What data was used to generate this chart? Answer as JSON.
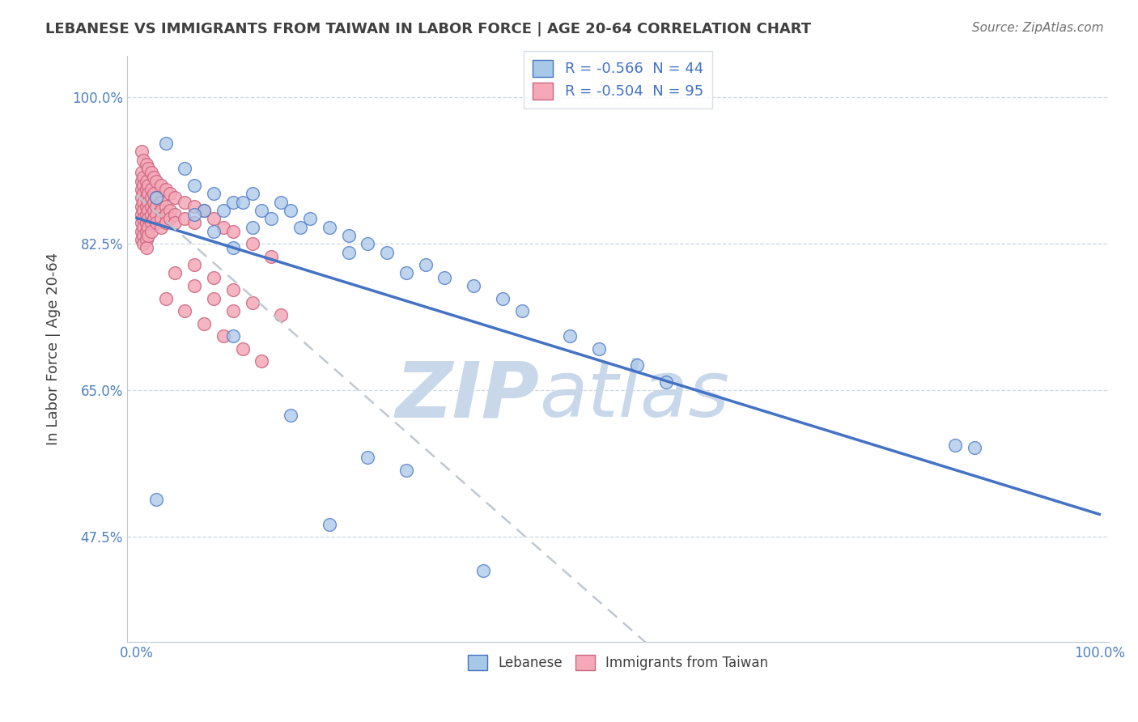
{
  "title": "LEBANESE VS IMMIGRANTS FROM TAIWAN IN LABOR FORCE | AGE 20-64 CORRELATION CHART",
  "source": "Source: ZipAtlas.com",
  "ylabel": "In Labor Force | Age 20-64",
  "xlim": [
    -0.01,
    1.01
  ],
  "ylim": [
    0.35,
    1.05
  ],
  "yticks": [
    0.475,
    0.65,
    0.825,
    1.0
  ],
  "ytick_labels": [
    "47.5%",
    "65.0%",
    "82.5%",
    "100.0%"
  ],
  "xticks": [
    0.0,
    1.0
  ],
  "xtick_labels": [
    "0.0%",
    "100.0%"
  ],
  "legend_r1": "R = -0.566  N = 44",
  "legend_r2": "R = -0.504  N = 95",
  "color_lebanese": "#a8c8e8",
  "color_taiwan": "#f4a8b8",
  "trendline_lebanese": "#4472c4",
  "trendline_taiwan": "#cc6680",
  "trendline_taiwan_dashed": "#c0c8d0",
  "background_color": "#ffffff",
  "grid_color": "#d0d8e0",
  "title_color": "#404040",
  "axis_label_color": "#404040",
  "tick_color": "#5080c0",
  "legend_text_color": "#4472c4",
  "watermark_color": "#c8d8ea",
  "lebanese_points": [
    [
      0.02,
      0.88
    ],
    [
      0.03,
      0.945
    ],
    [
      0.05,
      0.915
    ],
    [
      0.06,
      0.895
    ],
    [
      0.07,
      0.865
    ],
    [
      0.08,
      0.885
    ],
    [
      0.09,
      0.865
    ],
    [
      0.1,
      0.875
    ],
    [
      0.11,
      0.875
    ],
    [
      0.12,
      0.885
    ],
    [
      0.13,
      0.865
    ],
    [
      0.14,
      0.855
    ],
    [
      0.15,
      0.875
    ],
    [
      0.16,
      0.865
    ],
    [
      0.17,
      0.845
    ],
    [
      0.18,
      0.855
    ],
    [
      0.2,
      0.845
    ],
    [
      0.22,
      0.835
    ],
    [
      0.22,
      0.815
    ],
    [
      0.24,
      0.825
    ],
    [
      0.26,
      0.815
    ],
    [
      0.28,
      0.79
    ],
    [
      0.3,
      0.8
    ],
    [
      0.32,
      0.785
    ],
    [
      0.35,
      0.775
    ],
    [
      0.38,
      0.76
    ],
    [
      0.4,
      0.745
    ],
    [
      0.45,
      0.715
    ],
    [
      0.48,
      0.7
    ],
    [
      0.52,
      0.68
    ],
    [
      0.55,
      0.66
    ],
    [
      0.06,
      0.86
    ],
    [
      0.08,
      0.84
    ],
    [
      0.1,
      0.82
    ],
    [
      0.12,
      0.845
    ],
    [
      0.02,
      0.52
    ],
    [
      0.2,
      0.49
    ],
    [
      0.36,
      0.435
    ],
    [
      0.85,
      0.585
    ],
    [
      0.87,
      0.582
    ],
    [
      0.1,
      0.715
    ],
    [
      0.24,
      0.57
    ],
    [
      0.16,
      0.62
    ],
    [
      0.28,
      0.555
    ]
  ],
  "taiwan_points": [
    [
      0.005,
      0.935
    ],
    [
      0.005,
      0.91
    ],
    [
      0.005,
      0.9
    ],
    [
      0.005,
      0.89
    ],
    [
      0.005,
      0.88
    ],
    [
      0.005,
      0.87
    ],
    [
      0.005,
      0.86
    ],
    [
      0.005,
      0.85
    ],
    [
      0.005,
      0.84
    ],
    [
      0.005,
      0.83
    ],
    [
      0.007,
      0.925
    ],
    [
      0.007,
      0.905
    ],
    [
      0.007,
      0.895
    ],
    [
      0.007,
      0.885
    ],
    [
      0.007,
      0.875
    ],
    [
      0.007,
      0.865
    ],
    [
      0.007,
      0.855
    ],
    [
      0.007,
      0.845
    ],
    [
      0.007,
      0.835
    ],
    [
      0.007,
      0.825
    ],
    [
      0.01,
      0.92
    ],
    [
      0.01,
      0.9
    ],
    [
      0.01,
      0.89
    ],
    [
      0.01,
      0.88
    ],
    [
      0.01,
      0.87
    ],
    [
      0.01,
      0.86
    ],
    [
      0.01,
      0.85
    ],
    [
      0.01,
      0.84
    ],
    [
      0.01,
      0.83
    ],
    [
      0.01,
      0.82
    ],
    [
      0.012,
      0.915
    ],
    [
      0.012,
      0.895
    ],
    [
      0.012,
      0.885
    ],
    [
      0.012,
      0.875
    ],
    [
      0.012,
      0.865
    ],
    [
      0.012,
      0.855
    ],
    [
      0.012,
      0.845
    ],
    [
      0.012,
      0.835
    ],
    [
      0.015,
      0.91
    ],
    [
      0.015,
      0.89
    ],
    [
      0.015,
      0.88
    ],
    [
      0.015,
      0.87
    ],
    [
      0.015,
      0.86
    ],
    [
      0.015,
      0.85
    ],
    [
      0.015,
      0.84
    ],
    [
      0.018,
      0.905
    ],
    [
      0.018,
      0.885
    ],
    [
      0.018,
      0.875
    ],
    [
      0.018,
      0.865
    ],
    [
      0.018,
      0.855
    ],
    [
      0.02,
      0.9
    ],
    [
      0.02,
      0.88
    ],
    [
      0.02,
      0.87
    ],
    [
      0.02,
      0.86
    ],
    [
      0.02,
      0.85
    ],
    [
      0.025,
      0.895
    ],
    [
      0.025,
      0.875
    ],
    [
      0.025,
      0.865
    ],
    [
      0.025,
      0.855
    ],
    [
      0.025,
      0.845
    ],
    [
      0.03,
      0.89
    ],
    [
      0.03,
      0.87
    ],
    [
      0.03,
      0.86
    ],
    [
      0.03,
      0.85
    ],
    [
      0.035,
      0.885
    ],
    [
      0.035,
      0.865
    ],
    [
      0.035,
      0.855
    ],
    [
      0.04,
      0.88
    ],
    [
      0.04,
      0.86
    ],
    [
      0.04,
      0.85
    ],
    [
      0.05,
      0.875
    ],
    [
      0.05,
      0.855
    ],
    [
      0.06,
      0.87
    ],
    [
      0.06,
      0.85
    ],
    [
      0.07,
      0.865
    ],
    [
      0.08,
      0.855
    ],
    [
      0.09,
      0.845
    ],
    [
      0.1,
      0.84
    ],
    [
      0.12,
      0.825
    ],
    [
      0.14,
      0.81
    ],
    [
      0.06,
      0.8
    ],
    [
      0.08,
      0.785
    ],
    [
      0.1,
      0.77
    ],
    [
      0.12,
      0.755
    ],
    [
      0.15,
      0.74
    ],
    [
      0.04,
      0.79
    ],
    [
      0.06,
      0.775
    ],
    [
      0.08,
      0.76
    ],
    [
      0.1,
      0.745
    ],
    [
      0.03,
      0.76
    ],
    [
      0.05,
      0.745
    ],
    [
      0.07,
      0.73
    ],
    [
      0.09,
      0.715
    ],
    [
      0.11,
      0.7
    ],
    [
      0.13,
      0.685
    ]
  ]
}
